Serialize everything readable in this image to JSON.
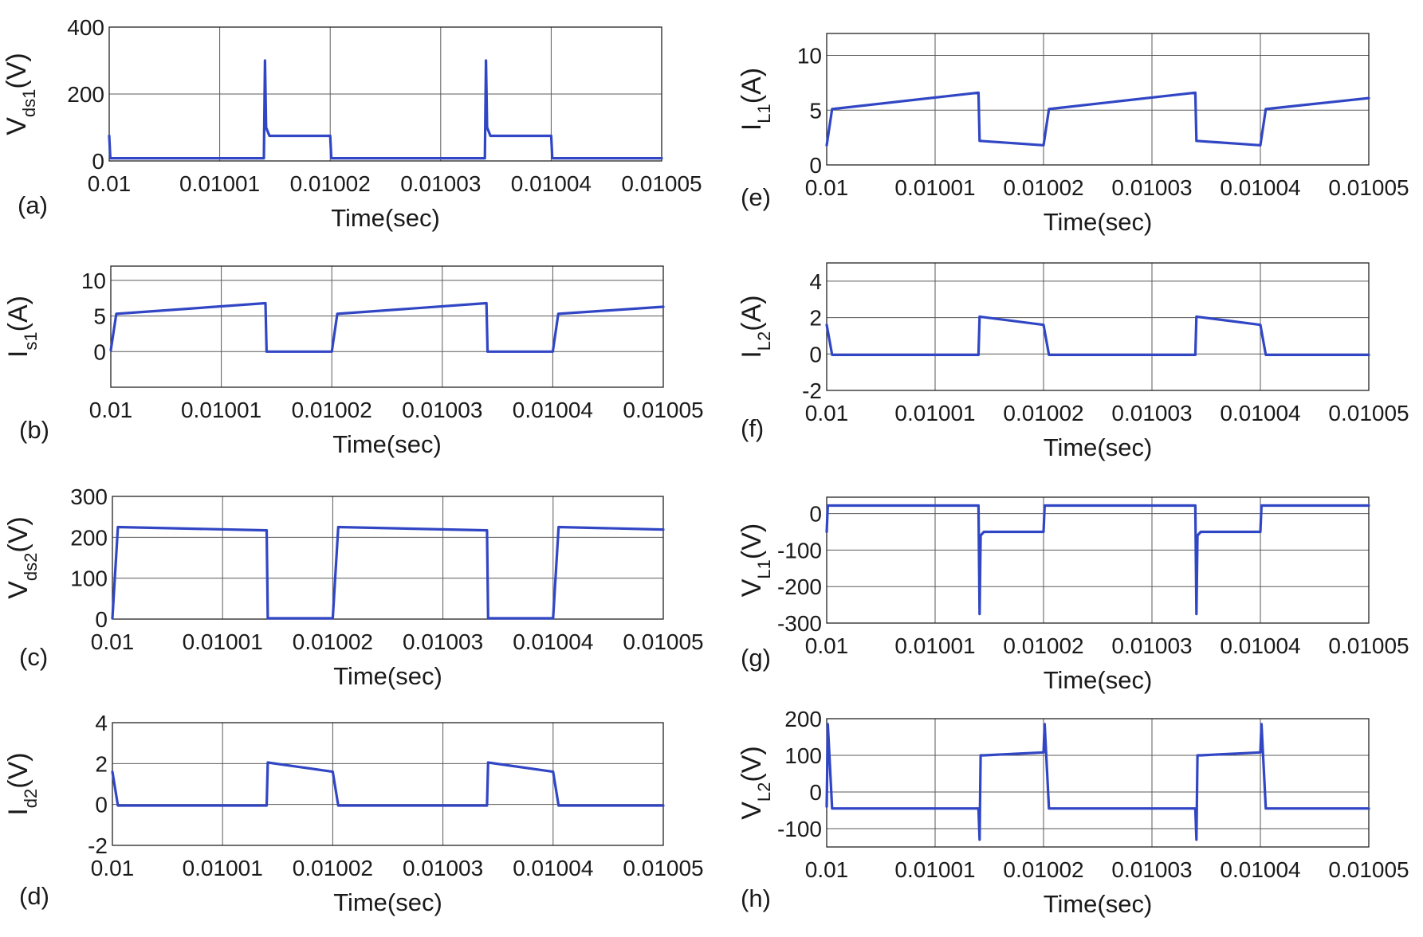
{
  "figure": {
    "line_color": "#3146c4",
    "grid_color": "#5a5a5a",
    "background": "#ffffff"
  },
  "chart_data": [
    {
      "id": "a",
      "type": "line",
      "panel_label": "(a)",
      "ylabel_main": "V",
      "ylabel_sub": "ds1",
      "ylabel_unit": "(V)",
      "xlabel": "Time(sec)",
      "xlim": [
        0.01,
        0.01005
      ],
      "ylim": [
        0,
        400
      ],
      "xticks": [
        "0.01",
        "0.01001",
        "0.01002",
        "0.01003",
        "0.01004",
        "0.01005"
      ],
      "yticks": [
        {
          "value": 0,
          "label": "0"
        },
        {
          "value": 200,
          "label": "200"
        },
        {
          "value": 400,
          "label": "400"
        }
      ],
      "grid": true,
      "series": [
        {
          "name": "Vds1",
          "x": [
            0.01,
            0.0100001,
            0.0100005,
            0.010014,
            0.0100141,
            0.0100142,
            0.0100145,
            0.0100146,
            0.01002,
            0.0100201,
            0.010034,
            0.0100341,
            0.0100342,
            0.0100345,
            0.0100346,
            0.01004,
            0.0100401,
            0.01005
          ],
          "y": [
            75,
            8,
            8,
            8,
            300,
            100,
            75,
            75,
            75,
            8,
            8,
            300,
            100,
            75,
            75,
            75,
            8,
            8
          ]
        }
      ]
    },
    {
      "id": "b",
      "type": "line",
      "panel_label": "(b)",
      "ylabel_main": "I",
      "ylabel_sub": "s1",
      "ylabel_unit": "(A)",
      "xlabel": "Time(sec)",
      "xlim": [
        0.01,
        0.01005
      ],
      "ylim": [
        -5,
        12
      ],
      "xticks": [
        "0.01",
        "0.01001",
        "0.01002",
        "0.01003",
        "0.01004",
        "0.01005"
      ],
      "yticks": [
        {
          "value": 0,
          "label": "0"
        },
        {
          "value": 5,
          "label": "5"
        },
        {
          "value": 10,
          "label": "10"
        }
      ],
      "grid": true,
      "series": [
        {
          "name": "Is1",
          "x": [
            0.01,
            0.0100005,
            0.010014,
            0.0100141,
            0.01002,
            0.0100205,
            0.010034,
            0.0100341,
            0.01004,
            0.0100405,
            0.01005
          ],
          "y": [
            0.2,
            5.3,
            6.8,
            0,
            0,
            5.3,
            6.8,
            0,
            0,
            5.3,
            6.3
          ]
        }
      ]
    },
    {
      "id": "c",
      "type": "line",
      "panel_label": "(c)",
      "ylabel_main": "V",
      "ylabel_sub": "ds2",
      "ylabel_unit": "(V)",
      "xlabel": "Time(sec)",
      "xlim": [
        0.01,
        0.01005
      ],
      "ylim": [
        0,
        300
      ],
      "xticks": [
        "0.01",
        "0.01001",
        "0.01002",
        "0.01003",
        "0.01004",
        "0.01005"
      ],
      "yticks": [
        {
          "value": 0,
          "label": "0"
        },
        {
          "value": 100,
          "label": "100"
        },
        {
          "value": 200,
          "label": "200"
        },
        {
          "value": 300,
          "label": "300"
        }
      ],
      "grid": true,
      "series": [
        {
          "name": "Vds2",
          "x": [
            0.01,
            0.0100005,
            0.010014,
            0.0100141,
            0.01002,
            0.0100205,
            0.010034,
            0.0100341,
            0.01004,
            0.0100405,
            0.01005
          ],
          "y": [
            2,
            225,
            217,
            2,
            2,
            225,
            217,
            2,
            2,
            225,
            219
          ]
        }
      ]
    },
    {
      "id": "d",
      "type": "line",
      "panel_label": "(d)",
      "ylabel_main": "I",
      "ylabel_sub": "d2",
      "ylabel_unit": "(V)",
      "xlabel": "Time(sec)",
      "xlim": [
        0.01,
        0.01005
      ],
      "ylim": [
        -2,
        4
      ],
      "xticks": [
        "0.01",
        "0.01001",
        "0.01002",
        "0.01003",
        "0.01004",
        "0.01005"
      ],
      "yticks": [
        {
          "value": -2,
          "label": "-2"
        },
        {
          "value": 0,
          "label": "0"
        },
        {
          "value": 2,
          "label": "2"
        },
        {
          "value": 4,
          "label": "4"
        }
      ],
      "grid": true,
      "series": [
        {
          "name": "Id2",
          "x": [
            0.01,
            0.0100005,
            0.010014,
            0.0100141,
            0.01002,
            0.0100205,
            0.010034,
            0.0100341,
            0.01004,
            0.0100405,
            0.01005
          ],
          "y": [
            1.6,
            -0.05,
            -0.05,
            2.05,
            1.6,
            -0.05,
            -0.05,
            2.05,
            1.6,
            -0.05,
            -0.05
          ]
        }
      ]
    },
    {
      "id": "e",
      "type": "line",
      "panel_label": "(e)",
      "ylabel_main": "I",
      "ylabel_sub": "L1",
      "ylabel_unit": "(A)",
      "xlabel": "Time(sec)",
      "xlim": [
        0.01,
        0.01005
      ],
      "ylim": [
        0,
        12
      ],
      "xticks": [
        "0.01",
        "0.01001",
        "0.01002",
        "0.01003",
        "0.01004",
        "0.01005"
      ],
      "yticks": [
        {
          "value": 0,
          "label": "0"
        },
        {
          "value": 5,
          "label": "5"
        },
        {
          "value": 10,
          "label": "10"
        }
      ],
      "grid": true,
      "series": [
        {
          "name": "IL1",
          "x": [
            0.01,
            0.0100005,
            0.010014,
            0.0100141,
            0.01002,
            0.0100205,
            0.010034,
            0.0100341,
            0.01004,
            0.0100405,
            0.01005
          ],
          "y": [
            1.8,
            5.1,
            6.6,
            2.2,
            1.8,
            5.1,
            6.6,
            2.2,
            1.8,
            5.1,
            6.1
          ]
        }
      ]
    },
    {
      "id": "f",
      "type": "line",
      "panel_label": "(f)",
      "ylabel_main": "I",
      "ylabel_sub": "L2",
      "ylabel_unit": "(A)",
      "xlabel": "Time(sec)",
      "xlim": [
        0.01,
        0.01005
      ],
      "ylim": [
        -2,
        5
      ],
      "xticks": [
        "0.01",
        "0.01001",
        "0.01002",
        "0.01003",
        "0.01004",
        "0.01005"
      ],
      "yticks": [
        {
          "value": -2,
          "label": "-2"
        },
        {
          "value": 0,
          "label": "0"
        },
        {
          "value": 2,
          "label": "2"
        },
        {
          "value": 4,
          "label": "4"
        }
      ],
      "grid": true,
      "series": [
        {
          "name": "IL2",
          "x": [
            0.01,
            0.0100005,
            0.010014,
            0.0100141,
            0.01002,
            0.0100205,
            0.010034,
            0.0100341,
            0.01004,
            0.0100405,
            0.01005
          ],
          "y": [
            1.6,
            -0.05,
            -0.05,
            2.05,
            1.6,
            -0.05,
            -0.05,
            2.05,
            1.6,
            -0.05,
            -0.05
          ]
        }
      ]
    },
    {
      "id": "g",
      "type": "line",
      "panel_label": "(g)",
      "ylabel_main": "V",
      "ylabel_sub": "L1",
      "ylabel_unit": "(V)",
      "xlabel": "Time(sec)",
      "xlim": [
        0.01,
        0.01005
      ],
      "ylim": [
        -300,
        45
      ],
      "xticks": [
        "0.01",
        "0.01001",
        "0.01002",
        "0.01003",
        "0.01004",
        "0.01005"
      ],
      "yticks": [
        {
          "value": -300,
          "label": "-300"
        },
        {
          "value": -200,
          "label": "-200"
        },
        {
          "value": -100,
          "label": "-100"
        },
        {
          "value": 0,
          "label": "0"
        }
      ],
      "grid": true,
      "series": [
        {
          "name": "VL1",
          "x": [
            0.01,
            0.0100001,
            0.010014,
            0.0100141,
            0.0100142,
            0.0100145,
            0.01002,
            0.0100201,
            0.010034,
            0.0100341,
            0.0100342,
            0.0100345,
            0.01004,
            0.0100401,
            0.01005
          ],
          "y": [
            -50,
            22,
            22,
            -275,
            -60,
            -50,
            -50,
            22,
            22,
            -275,
            -60,
            -50,
            -50,
            22,
            22
          ]
        }
      ]
    },
    {
      "id": "h",
      "type": "line",
      "panel_label": "(h)",
      "ylabel_main": "V",
      "ylabel_sub": "L2",
      "ylabel_unit": "(V)",
      "xlabel": "Time(sec)",
      "xlim": [
        0.01,
        0.01005
      ],
      "ylim": [
        -150,
        200
      ],
      "xticks": [
        "0.01",
        "0.01001",
        "0.01002",
        "0.01003",
        "0.01004",
        "0.01005"
      ],
      "yticks": [
        {
          "value": -100,
          "label": "-100"
        },
        {
          "value": 0,
          "label": "0"
        },
        {
          "value": 100,
          "label": "100"
        },
        {
          "value": 200,
          "label": "200"
        }
      ],
      "grid": true,
      "series": [
        {
          "name": "VL2",
          "x": [
            0.01,
            0.0100001,
            0.0100005,
            0.010014,
            0.0100141,
            0.0100142,
            0.0100145,
            0.01002,
            0.0100201,
            0.0100205,
            0.010034,
            0.0100341,
            0.0100342,
            0.0100345,
            0.01004,
            0.0100401,
            0.0100405,
            0.01005
          ],
          "y": [
            -40,
            185,
            -45,
            -45,
            -130,
            100,
            100,
            108,
            185,
            -45,
            -45,
            -130,
            100,
            100,
            108,
            185,
            -45,
            -45
          ]
        }
      ]
    }
  ]
}
